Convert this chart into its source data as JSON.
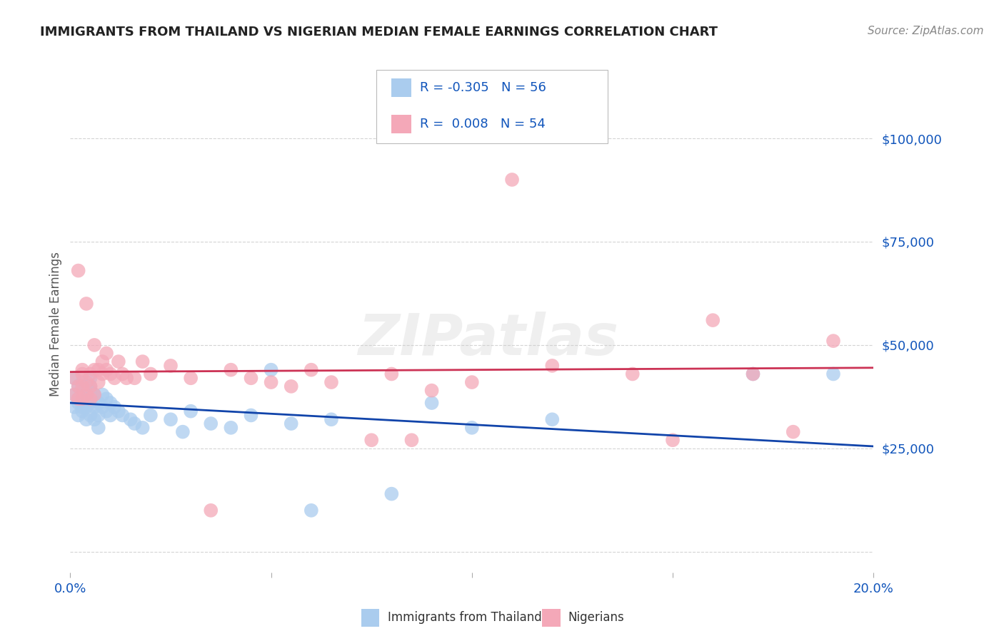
{
  "title": "IMMIGRANTS FROM THAILAND VS NIGERIAN MEDIAN FEMALE EARNINGS CORRELATION CHART",
  "source": "Source: ZipAtlas.com",
  "ylabel_label": "Median Female Earnings",
  "xlim": [
    0.0,
    0.2
  ],
  "ylim": [
    -5000,
    115000
  ],
  "yticks": [
    0,
    25000,
    50000,
    75000,
    100000
  ],
  "ytick_labels": [
    "",
    "$25,000",
    "$50,000",
    "$75,000",
    "$100,000"
  ],
  "xticks": [
    0.0,
    0.05,
    0.1,
    0.15,
    0.2
  ],
  "xtick_labels": [
    "0.0%",
    "",
    "",
    "",
    "20.0%"
  ],
  "background_color": "#ffffff",
  "grid_color": "#d0d0d0",
  "watermark": "ZIPatlas",
  "watermark_color": "#cccccc",
  "series1_color": "#aaccee",
  "series2_color": "#f4a8b8",
  "series1_label": "Immigrants from Thailand",
  "series2_label": "Nigerians",
  "series1_R": "-0.305",
  "series2_R": "0.008",
  "series1_N": "56",
  "series2_N": "54",
  "legend_R_color": "#1155bb",
  "trendline1_color": "#1144aa",
  "trendline2_color": "#cc3355",
  "title_color": "#222222",
  "source_color": "#888888",
  "ylabel_color": "#555555",
  "xtick_color": "#1155bb",
  "ytick_color": "#1155bb",
  "series1_x": [
    0.001,
    0.001,
    0.001,
    0.002,
    0.002,
    0.002,
    0.002,
    0.003,
    0.003,
    0.003,
    0.003,
    0.003,
    0.004,
    0.004,
    0.004,
    0.004,
    0.005,
    0.005,
    0.005,
    0.005,
    0.005,
    0.006,
    0.006,
    0.006,
    0.007,
    0.007,
    0.007,
    0.008,
    0.008,
    0.009,
    0.009,
    0.01,
    0.01,
    0.011,
    0.012,
    0.013,
    0.015,
    0.016,
    0.018,
    0.02,
    0.025,
    0.028,
    0.03,
    0.035,
    0.04,
    0.045,
    0.05,
    0.055,
    0.06,
    0.065,
    0.08,
    0.09,
    0.1,
    0.12,
    0.17,
    0.19
  ],
  "series1_y": [
    42000,
    38000,
    35000,
    40000,
    37000,
    36000,
    33000,
    41000,
    38000,
    35000,
    37000,
    34000,
    40000,
    37000,
    35000,
    32000,
    42000,
    39000,
    36000,
    33000,
    40000,
    38000,
    35000,
    32000,
    36000,
    33000,
    30000,
    38000,
    35000,
    37000,
    34000,
    36000,
    33000,
    35000,
    34000,
    33000,
    32000,
    31000,
    30000,
    33000,
    32000,
    29000,
    34000,
    31000,
    30000,
    33000,
    44000,
    31000,
    10000,
    32000,
    14000,
    36000,
    30000,
    32000,
    43000,
    43000
  ],
  "series2_x": [
    0.001,
    0.001,
    0.002,
    0.002,
    0.002,
    0.003,
    0.003,
    0.003,
    0.003,
    0.004,
    0.004,
    0.004,
    0.005,
    0.005,
    0.005,
    0.006,
    0.006,
    0.006,
    0.007,
    0.007,
    0.008,
    0.008,
    0.009,
    0.009,
    0.01,
    0.011,
    0.012,
    0.013,
    0.014,
    0.016,
    0.018,
    0.02,
    0.025,
    0.03,
    0.035,
    0.04,
    0.045,
    0.05,
    0.055,
    0.06,
    0.065,
    0.075,
    0.08,
    0.085,
    0.09,
    0.1,
    0.11,
    0.12,
    0.14,
    0.15,
    0.16,
    0.17,
    0.18,
    0.19
  ],
  "series2_y": [
    42000,
    38000,
    68000,
    40000,
    37000,
    43000,
    40000,
    37000,
    44000,
    41000,
    60000,
    38000,
    43000,
    40000,
    37000,
    50000,
    44000,
    38000,
    44000,
    41000,
    46000,
    43000,
    48000,
    44000,
    43000,
    42000,
    46000,
    43000,
    42000,
    42000,
    46000,
    43000,
    45000,
    42000,
    10000,
    44000,
    42000,
    41000,
    40000,
    44000,
    41000,
    27000,
    43000,
    27000,
    39000,
    41000,
    90000,
    45000,
    43000,
    27000,
    56000,
    43000,
    29000,
    51000
  ]
}
